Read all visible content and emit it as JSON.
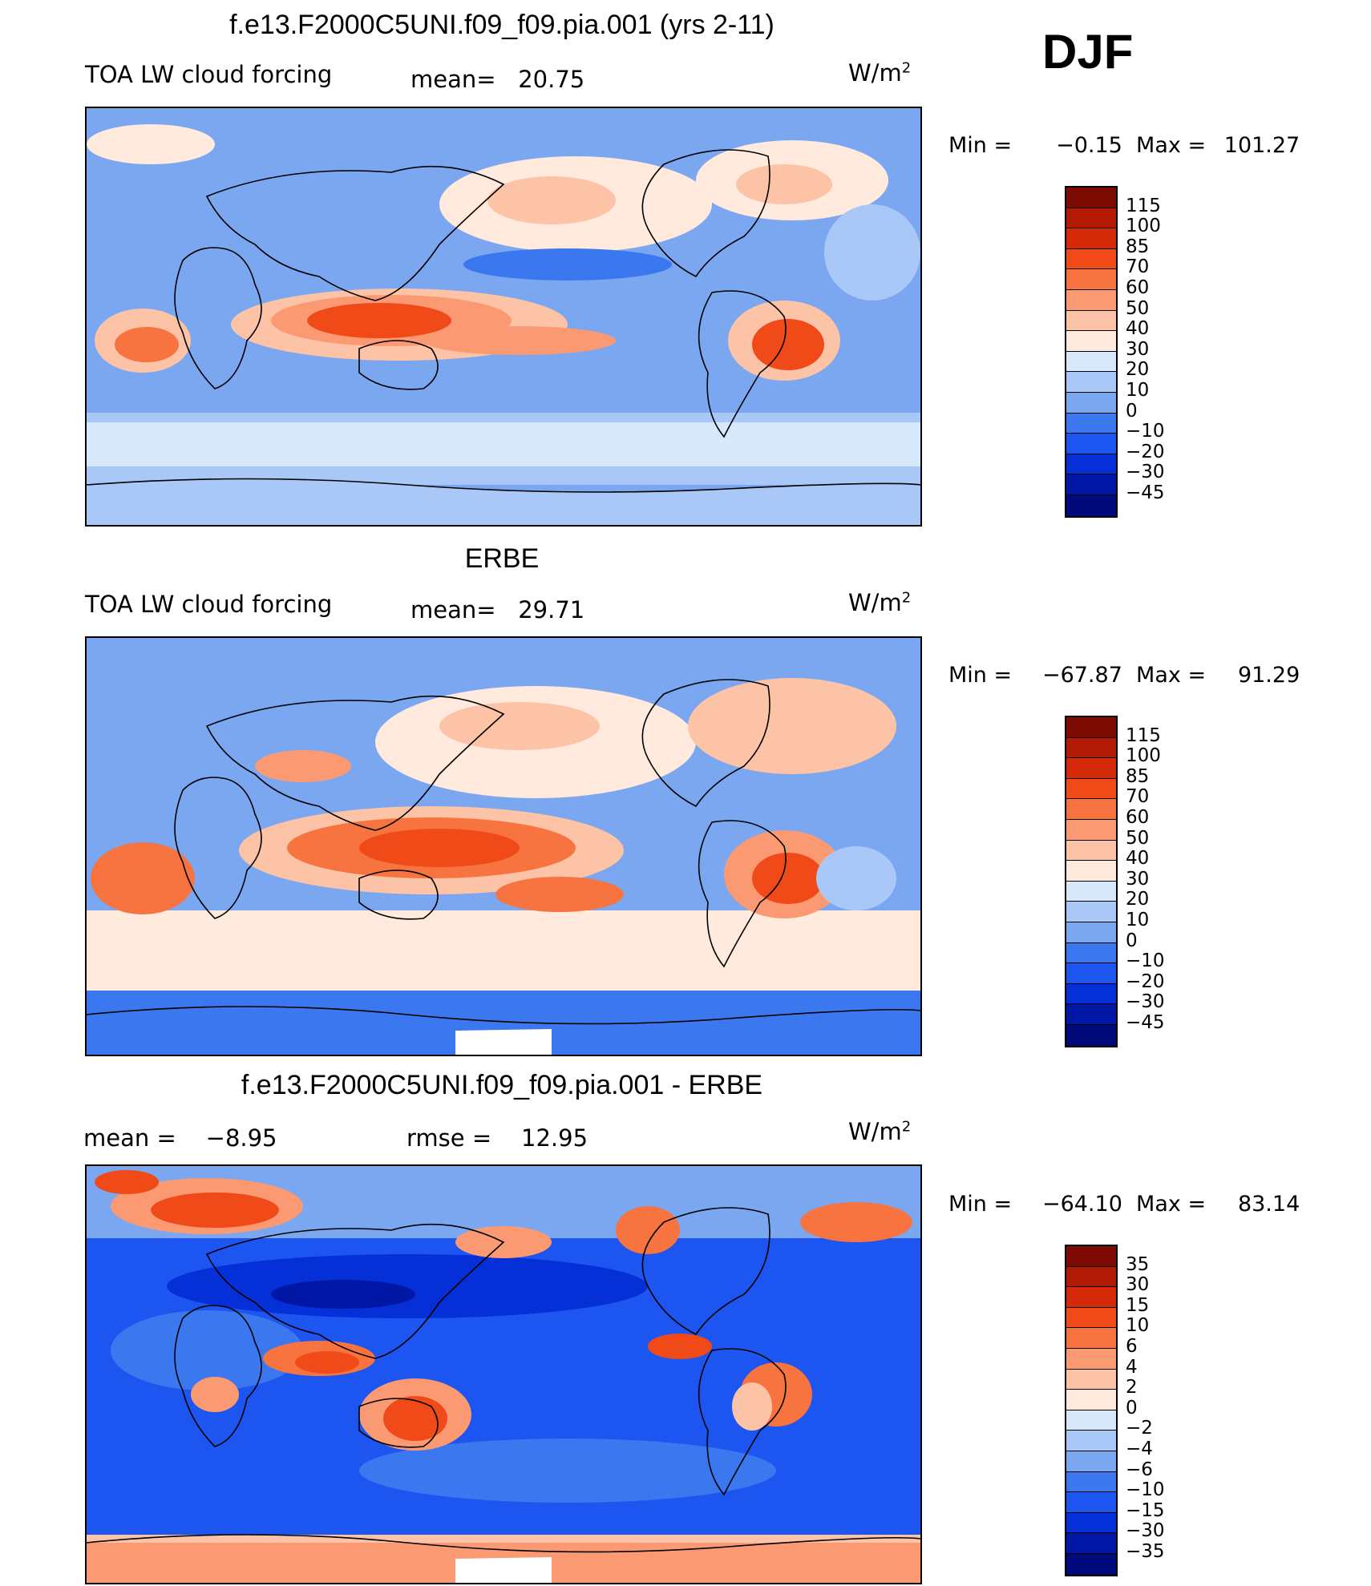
{
  "season": "DJF",
  "colors": {
    "main_scale": [
      "#000a7a",
      "#0016a5",
      "#0530d8",
      "#1c55f0",
      "#3b78f0",
      "#7ba7f0",
      "#aac8f7",
      "#d7e8fb",
      "#ffeadd",
      "#fdc3a6",
      "#fb9a72",
      "#f7733f",
      "#f04a19",
      "#d42a0a",
      "#b31a05",
      "#7e0b03"
    ],
    "diff_scale": [
      "#000a7a",
      "#0016a5",
      "#0530d8",
      "#1c55f0",
      "#3b78f0",
      "#7ba7f0",
      "#aac8f7",
      "#d7e8fb",
      "#ffeadd",
      "#fdc3a6",
      "#fb9a72",
      "#f7733f",
      "#f04a19",
      "#d42a0a",
      "#b31a05",
      "#7e0b03"
    ]
  },
  "panels": [
    {
      "title": "f.e13.F2000C5UNI.f09_f09.pia.001 (yrs 2-11)",
      "left_label": "TOA LW cloud forcing",
      "mean_label": "mean=",
      "mean_value": "20.75",
      "units": "W/m",
      "units_sup": "2",
      "min_label": "Min =",
      "min_value": "−0.15",
      "max_label": "Max =",
      "max_value": "101.27",
      "colorbar_labels": [
        "115",
        "100",
        "85",
        "70",
        "60",
        "50",
        "40",
        "30",
        "20",
        "10",
        "0",
        "−10",
        "−20",
        "−30",
        "−45"
      ]
    },
    {
      "title": "ERBE",
      "left_label": "TOA LW cloud forcing",
      "mean_label": "mean=",
      "mean_value": "29.71",
      "units": "W/m",
      "units_sup": "2",
      "min_label": "Min =",
      "min_value": "−67.87",
      "max_label": "Max =",
      "max_value": "91.29",
      "colorbar_labels": [
        "115",
        "100",
        "85",
        "70",
        "60",
        "50",
        "40",
        "30",
        "20",
        "10",
        "0",
        "−10",
        "−20",
        "−30",
        "−45"
      ]
    },
    {
      "title": "f.e13.F2000C5UNI.f09_f09.pia.001 - ERBE",
      "mean_label": "mean =",
      "mean_value": "−8.95",
      "rmse_label": "rmse =",
      "rmse_value": "12.95",
      "units": "W/m",
      "units_sup": "2",
      "min_label": "Min =",
      "min_value": "−64.10",
      "max_label": "Max =",
      "max_value": "83.14",
      "colorbar_labels": [
        "35",
        "30",
        "15",
        "10",
        "6",
        "4",
        "2",
        "0",
        "−2",
        "−4",
        "−6",
        "−10",
        "−15",
        "−30",
        "−35"
      ]
    }
  ],
  "chart_data": [
    {
      "type": "heatmap",
      "title": "f.e13.F2000C5UNI.f09_f09.pia.001 (yrs 2-11)",
      "field": "TOA LW cloud forcing",
      "units": "W/m2",
      "mean": 20.75,
      "min": -0.15,
      "max": 101.27,
      "levels": [
        -45,
        -30,
        -20,
        -10,
        0,
        10,
        20,
        30,
        40,
        50,
        60,
        70,
        85,
        100,
        115
      ]
    },
    {
      "type": "heatmap",
      "title": "ERBE",
      "field": "TOA LW cloud forcing",
      "units": "W/m2",
      "mean": 29.71,
      "min": -67.87,
      "max": 91.29,
      "levels": [
        -45,
        -30,
        -20,
        -10,
        0,
        10,
        20,
        30,
        40,
        50,
        60,
        70,
        85,
        100,
        115
      ]
    },
    {
      "type": "heatmap",
      "title": "f.e13.F2000C5UNI.f09_f09.pia.001 - ERBE",
      "units": "W/m2",
      "mean": -8.95,
      "rmse": 12.95,
      "min": -64.1,
      "max": 83.14,
      "levels": [
        -35,
        -30,
        -15,
        -10,
        -6,
        -4,
        -2,
        0,
        2,
        4,
        6,
        10,
        15,
        30,
        35
      ]
    }
  ]
}
